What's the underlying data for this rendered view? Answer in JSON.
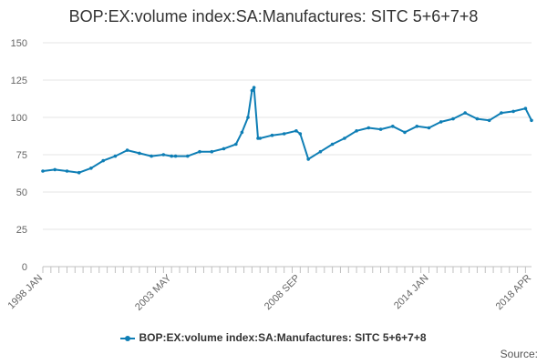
{
  "chart_data": {
    "type": "line",
    "title": "BOP:EX:volume index:SA:Manufactures: SITC 5+6+7+8",
    "xlabel": "",
    "ylabel": "",
    "ylim": [
      0,
      150
    ],
    "yticks": [
      0,
      25,
      50,
      75,
      100,
      125,
      150
    ],
    "x_tick_labels": [
      "1998 JAN",
      "2003 MAY",
      "2008 SEP",
      "2014 JAN",
      "2018 APR"
    ],
    "grid": true,
    "legend_position": "bottom",
    "source_label": "Source:",
    "series": [
      {
        "name": "BOP:EX:volume index:SA:Manufactures: SITC 5+6+7+8",
        "color": "#0e7eb5",
        "x": [
          "1998 JAN",
          "1998 JUL",
          "1999 JAN",
          "1999 JUL",
          "2000 JAN",
          "2000 JUL",
          "2001 JAN",
          "2001 JUL",
          "2002 JAN",
          "2002 JUL",
          "2003 JAN",
          "2003 MAY",
          "2003 JUL",
          "2004 JAN",
          "2004 JUL",
          "2005 JAN",
          "2005 JUL",
          "2006 JAN",
          "2006 APR",
          "2006 JUL",
          "2006 SEP",
          "2006 OCT",
          "2006 DEC",
          "2007 JAN",
          "2007 JUL",
          "2008 JAN",
          "2008 JUL",
          "2008 SEP",
          "2009 JAN",
          "2009 JUL",
          "2010 JAN",
          "2010 JUL",
          "2011 JAN",
          "2011 JUL",
          "2012 JAN",
          "2012 JUL",
          "2013 JAN",
          "2013 JUL",
          "2014 JAN",
          "2014 JUL",
          "2015 JAN",
          "2015 JUL",
          "2016 JAN",
          "2016 JUL",
          "2017 JAN",
          "2017 JUL",
          "2018 JAN",
          "2018 APR"
        ],
        "values": [
          64,
          65,
          64,
          63,
          66,
          71,
          74,
          78,
          76,
          74,
          75,
          74,
          74,
          74,
          77,
          77,
          79,
          82,
          90,
          100,
          118,
          120,
          86,
          86,
          88,
          89,
          91,
          89,
          72,
          77,
          82,
          86,
          91,
          93,
          92,
          94,
          90,
          94,
          93,
          97,
          99,
          103,
          99,
          98,
          103,
          104,
          106,
          98
        ]
      }
    ]
  }
}
